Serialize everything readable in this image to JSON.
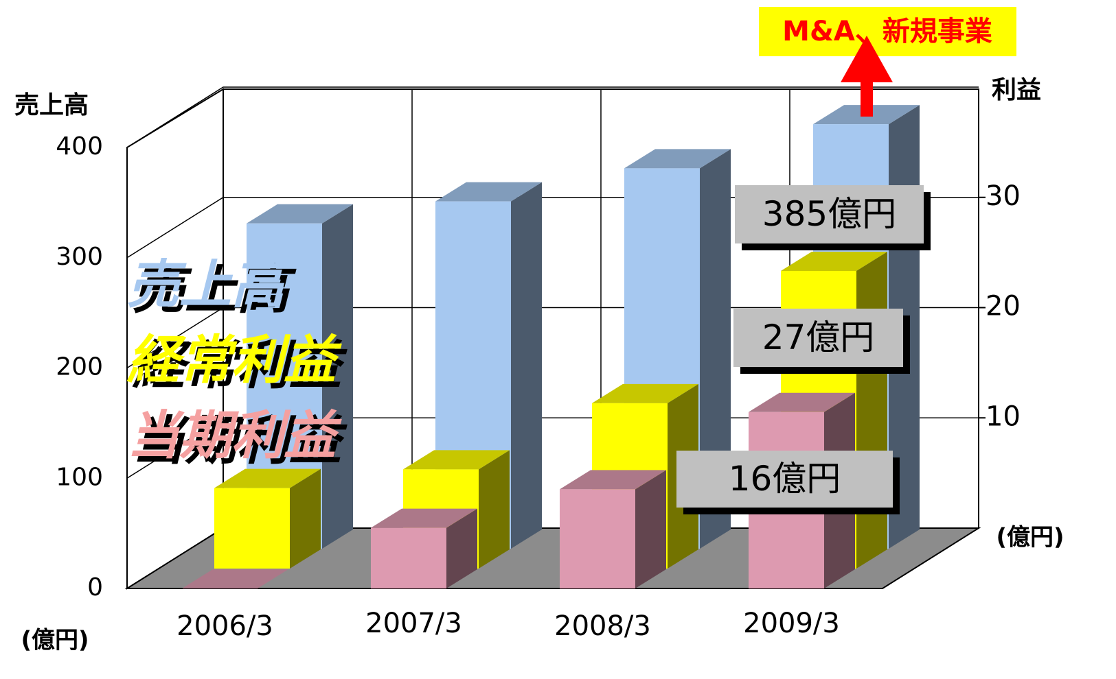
{
  "chart_data": {
    "type": "bar3d",
    "y_label": "売上高",
    "y2_label": "利益",
    "y_unit": "(億円)",
    "y2_unit": "(億円)",
    "annotation": "M&A、新規事業",
    "categories": [
      "2006/3",
      "2007/3",
      "2008/3",
      "2009/3"
    ],
    "ylim": [
      0,
      400
    ],
    "yticks": [
      0,
      100,
      200,
      300,
      400
    ],
    "y2lim": [
      0,
      40
    ],
    "y2ticks": [
      10,
      20,
      30
    ],
    "series": [
      {
        "name": "売上高",
        "color": "#a6c8f0",
        "values": [
          295,
          315,
          345,
          385
        ],
        "value_labels": [
          null,
          null,
          null,
          "385億円"
        ]
      },
      {
        "name": "経常利益",
        "color": "#ffff00",
        "axis": "y2",
        "values": [
          7.3,
          9,
          15,
          27
        ],
        "value_labels": [
          null,
          null,
          null,
          "27億円"
        ]
      },
      {
        "name": "当期利益",
        "color": "#dd9ab0",
        "axis": "y2",
        "values": [
          0,
          5.5,
          9,
          16
        ],
        "value_labels": [
          null,
          null,
          null,
          "16億円"
        ]
      }
    ]
  }
}
